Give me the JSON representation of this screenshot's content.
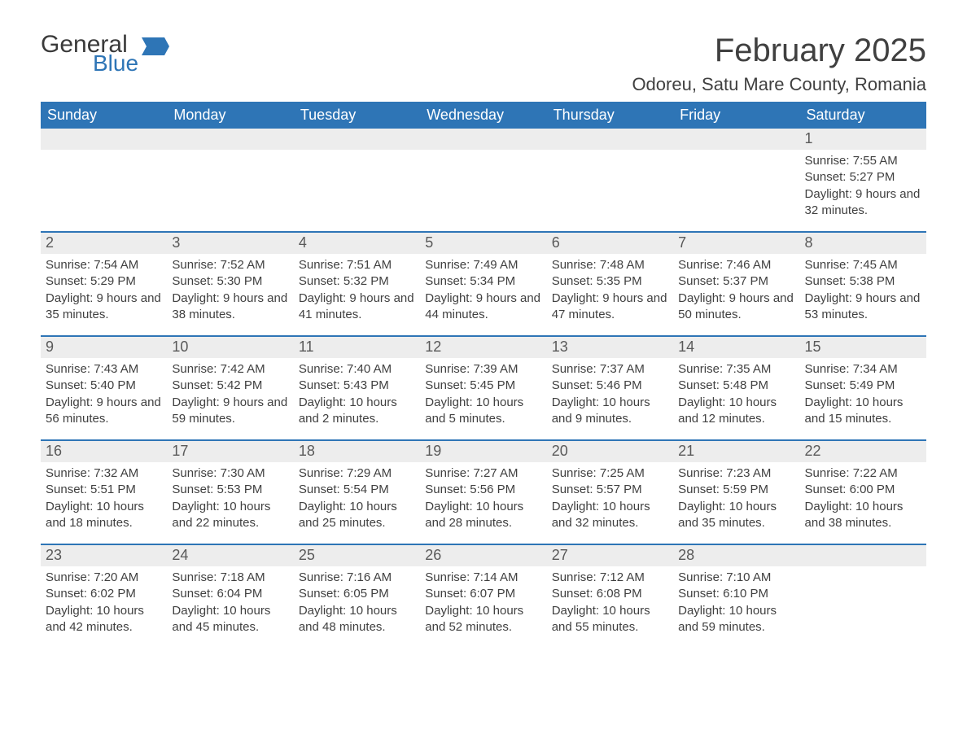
{
  "logo": {
    "general": "General",
    "blue": "Blue",
    "flag_color": "#2e75b6"
  },
  "title": "February 2025",
  "location": "Odoreu, Satu Mare County, Romania",
  "colors": {
    "header_bg": "#2e75b6",
    "header_text": "#ffffff",
    "daybar_bg": "#ededed",
    "daybar_text": "#595959",
    "body_text": "#404040",
    "divider": "#2e75b6",
    "background": "#ffffff"
  },
  "fonts": {
    "title_size_pt": 30,
    "location_size_pt": 17,
    "weekday_size_pt": 14,
    "daynum_size_pt": 14,
    "detail_size_pt": 11
  },
  "weekdays": [
    "Sunday",
    "Monday",
    "Tuesday",
    "Wednesday",
    "Thursday",
    "Friday",
    "Saturday"
  ],
  "weeks": [
    [
      {
        "day": "",
        "sunrise": "",
        "sunset": "",
        "daylight": ""
      },
      {
        "day": "",
        "sunrise": "",
        "sunset": "",
        "daylight": ""
      },
      {
        "day": "",
        "sunrise": "",
        "sunset": "",
        "daylight": ""
      },
      {
        "day": "",
        "sunrise": "",
        "sunset": "",
        "daylight": ""
      },
      {
        "day": "",
        "sunrise": "",
        "sunset": "",
        "daylight": ""
      },
      {
        "day": "",
        "sunrise": "",
        "sunset": "",
        "daylight": ""
      },
      {
        "day": "1",
        "sunrise": "Sunrise: 7:55 AM",
        "sunset": "Sunset: 5:27 PM",
        "daylight": "Daylight: 9 hours and 32 minutes."
      }
    ],
    [
      {
        "day": "2",
        "sunrise": "Sunrise: 7:54 AM",
        "sunset": "Sunset: 5:29 PM",
        "daylight": "Daylight: 9 hours and 35 minutes."
      },
      {
        "day": "3",
        "sunrise": "Sunrise: 7:52 AM",
        "sunset": "Sunset: 5:30 PM",
        "daylight": "Daylight: 9 hours and 38 minutes."
      },
      {
        "day": "4",
        "sunrise": "Sunrise: 7:51 AM",
        "sunset": "Sunset: 5:32 PM",
        "daylight": "Daylight: 9 hours and 41 minutes."
      },
      {
        "day": "5",
        "sunrise": "Sunrise: 7:49 AM",
        "sunset": "Sunset: 5:34 PM",
        "daylight": "Daylight: 9 hours and 44 minutes."
      },
      {
        "day": "6",
        "sunrise": "Sunrise: 7:48 AM",
        "sunset": "Sunset: 5:35 PM",
        "daylight": "Daylight: 9 hours and 47 minutes."
      },
      {
        "day": "7",
        "sunrise": "Sunrise: 7:46 AM",
        "sunset": "Sunset: 5:37 PM",
        "daylight": "Daylight: 9 hours and 50 minutes."
      },
      {
        "day": "8",
        "sunrise": "Sunrise: 7:45 AM",
        "sunset": "Sunset: 5:38 PM",
        "daylight": "Daylight: 9 hours and 53 minutes."
      }
    ],
    [
      {
        "day": "9",
        "sunrise": "Sunrise: 7:43 AM",
        "sunset": "Sunset: 5:40 PM",
        "daylight": "Daylight: 9 hours and 56 minutes."
      },
      {
        "day": "10",
        "sunrise": "Sunrise: 7:42 AM",
        "sunset": "Sunset: 5:42 PM",
        "daylight": "Daylight: 9 hours and 59 minutes."
      },
      {
        "day": "11",
        "sunrise": "Sunrise: 7:40 AM",
        "sunset": "Sunset: 5:43 PM",
        "daylight": "Daylight: 10 hours and 2 minutes."
      },
      {
        "day": "12",
        "sunrise": "Sunrise: 7:39 AM",
        "sunset": "Sunset: 5:45 PM",
        "daylight": "Daylight: 10 hours and 5 minutes."
      },
      {
        "day": "13",
        "sunrise": "Sunrise: 7:37 AM",
        "sunset": "Sunset: 5:46 PM",
        "daylight": "Daylight: 10 hours and 9 minutes."
      },
      {
        "day": "14",
        "sunrise": "Sunrise: 7:35 AM",
        "sunset": "Sunset: 5:48 PM",
        "daylight": "Daylight: 10 hours and 12 minutes."
      },
      {
        "day": "15",
        "sunrise": "Sunrise: 7:34 AM",
        "sunset": "Sunset: 5:49 PM",
        "daylight": "Daylight: 10 hours and 15 minutes."
      }
    ],
    [
      {
        "day": "16",
        "sunrise": "Sunrise: 7:32 AM",
        "sunset": "Sunset: 5:51 PM",
        "daylight": "Daylight: 10 hours and 18 minutes."
      },
      {
        "day": "17",
        "sunrise": "Sunrise: 7:30 AM",
        "sunset": "Sunset: 5:53 PM",
        "daylight": "Daylight: 10 hours and 22 minutes."
      },
      {
        "day": "18",
        "sunrise": "Sunrise: 7:29 AM",
        "sunset": "Sunset: 5:54 PM",
        "daylight": "Daylight: 10 hours and 25 minutes."
      },
      {
        "day": "19",
        "sunrise": "Sunrise: 7:27 AM",
        "sunset": "Sunset: 5:56 PM",
        "daylight": "Daylight: 10 hours and 28 minutes."
      },
      {
        "day": "20",
        "sunrise": "Sunrise: 7:25 AM",
        "sunset": "Sunset: 5:57 PM",
        "daylight": "Daylight: 10 hours and 32 minutes."
      },
      {
        "day": "21",
        "sunrise": "Sunrise: 7:23 AM",
        "sunset": "Sunset: 5:59 PM",
        "daylight": "Daylight: 10 hours and 35 minutes."
      },
      {
        "day": "22",
        "sunrise": "Sunrise: 7:22 AM",
        "sunset": "Sunset: 6:00 PM",
        "daylight": "Daylight: 10 hours and 38 minutes."
      }
    ],
    [
      {
        "day": "23",
        "sunrise": "Sunrise: 7:20 AM",
        "sunset": "Sunset: 6:02 PM",
        "daylight": "Daylight: 10 hours and 42 minutes."
      },
      {
        "day": "24",
        "sunrise": "Sunrise: 7:18 AM",
        "sunset": "Sunset: 6:04 PM",
        "daylight": "Daylight: 10 hours and 45 minutes."
      },
      {
        "day": "25",
        "sunrise": "Sunrise: 7:16 AM",
        "sunset": "Sunset: 6:05 PM",
        "daylight": "Daylight: 10 hours and 48 minutes."
      },
      {
        "day": "26",
        "sunrise": "Sunrise: 7:14 AM",
        "sunset": "Sunset: 6:07 PM",
        "daylight": "Daylight: 10 hours and 52 minutes."
      },
      {
        "day": "27",
        "sunrise": "Sunrise: 7:12 AM",
        "sunset": "Sunset: 6:08 PM",
        "daylight": "Daylight: 10 hours and 55 minutes."
      },
      {
        "day": "28",
        "sunrise": "Sunrise: 7:10 AM",
        "sunset": "Sunset: 6:10 PM",
        "daylight": "Daylight: 10 hours and 59 minutes."
      },
      {
        "day": "",
        "sunrise": "",
        "sunset": "",
        "daylight": ""
      }
    ]
  ]
}
